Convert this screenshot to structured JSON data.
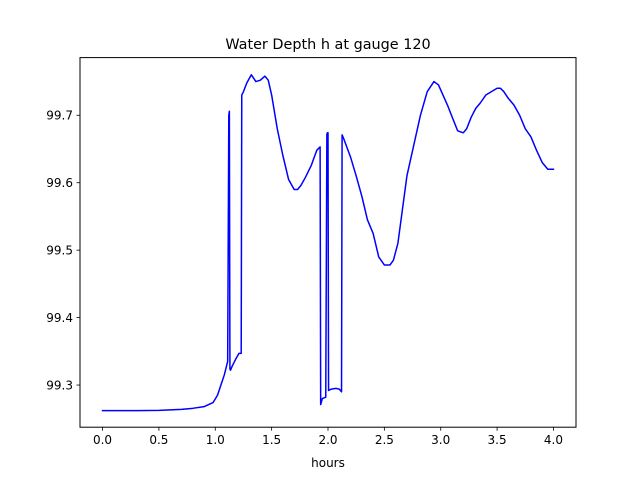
{
  "chart_data": {
    "type": "line",
    "title": "Water Depth h at gauge 120",
    "xlabel": "hours",
    "ylabel": "",
    "xlim": [
      -0.2,
      4.2
    ],
    "ylim": [
      99.2375,
      99.7855
    ],
    "xticks": [
      0.0,
      0.5,
      1.0,
      1.5,
      2.0,
      2.5,
      3.0,
      3.5,
      4.0
    ],
    "xtick_labels": [
      "0.0",
      "0.5",
      "1.0",
      "1.5",
      "2.0",
      "2.5",
      "3.0",
      "3.5",
      "4.0"
    ],
    "yticks": [
      99.3,
      99.4,
      99.5,
      99.6,
      99.7
    ],
    "ytick_labels": [
      "99.3",
      "99.4",
      "99.5",
      "99.6",
      "99.7"
    ],
    "grid": false,
    "series": [
      {
        "color": "#0000ff",
        "x": [
          0.0,
          0.3,
          0.5,
          0.7,
          0.8,
          0.9,
          0.98,
          1.02,
          1.05,
          1.08,
          1.11,
          1.12,
          1.125,
          1.13,
          1.135,
          1.15,
          1.18,
          1.21,
          1.23,
          1.235,
          1.25,
          1.28,
          1.32,
          1.36,
          1.4,
          1.44,
          1.47,
          1.5,
          1.55,
          1.6,
          1.65,
          1.7,
          1.73,
          1.76,
          1.8,
          1.85,
          1.9,
          1.93,
          1.935,
          1.95,
          1.98,
          1.99,
          1.995,
          2.0,
          2.005,
          2.03,
          2.07,
          2.1,
          2.12,
          2.125,
          2.14,
          2.2,
          2.25,
          2.3,
          2.35,
          2.4,
          2.45,
          2.5,
          2.55,
          2.58,
          2.62,
          2.66,
          2.7,
          2.76,
          2.82,
          2.88,
          2.94,
          2.98,
          3.02,
          3.06,
          3.1,
          3.15,
          3.2,
          3.23,
          3.27,
          3.31,
          3.35,
          3.4,
          3.45,
          3.5,
          3.53,
          3.56,
          3.6,
          3.65,
          3.7,
          3.75,
          3.8,
          3.85,
          3.9,
          3.95,
          4.0
        ],
        "y": [
          99.262,
          99.262,
          99.2625,
          99.264,
          99.2655,
          99.268,
          99.274,
          99.285,
          99.3,
          99.315,
          99.335,
          99.7,
          99.706,
          99.324,
          99.322,
          99.328,
          99.338,
          99.347,
          99.347,
          99.73,
          99.735,
          99.748,
          99.76,
          99.75,
          99.752,
          99.758,
          99.752,
          99.73,
          99.68,
          99.64,
          99.605,
          99.59,
          99.59,
          99.596,
          99.608,
          99.625,
          99.648,
          99.653,
          99.271,
          99.28,
          99.282,
          99.672,
          99.674,
          99.674,
          99.292,
          99.294,
          99.295,
          99.294,
          99.29,
          99.671,
          99.665,
          99.638,
          99.61,
          99.58,
          99.545,
          99.525,
          99.49,
          99.478,
          99.478,
          99.485,
          99.51,
          99.56,
          99.61,
          99.655,
          99.7,
          99.735,
          99.75,
          99.745,
          99.73,
          99.715,
          99.698,
          99.677,
          99.674,
          99.68,
          99.697,
          99.71,
          99.718,
          99.73,
          99.735,
          99.74,
          99.74,
          99.735,
          99.725,
          99.715,
          99.7,
          99.68,
          99.668,
          99.648,
          99.63,
          99.62,
          99.62
        ]
      }
    ]
  }
}
